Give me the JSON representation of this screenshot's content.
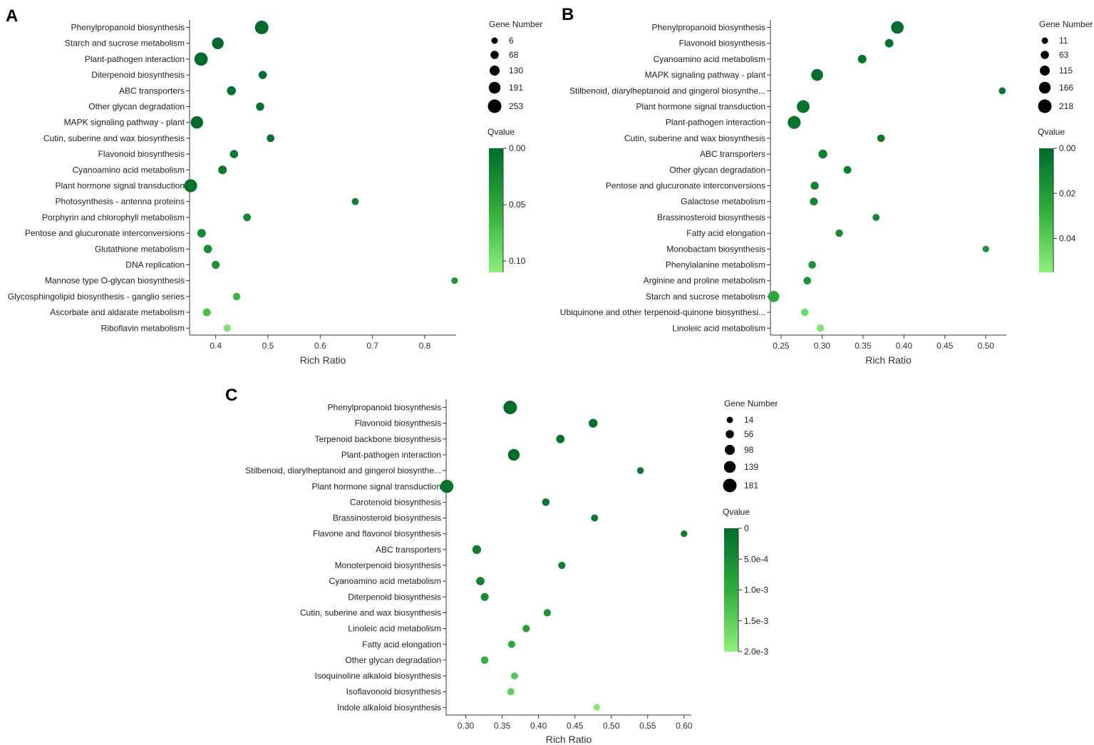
{
  "panels": [
    {
      "letter": "A",
      "size_legend_title": "Gene Number",
      "color_legend_title": "Qvalue",
      "xlabel": "Rich Ratio",
      "chart_data": {
        "type": "scatter",
        "xlabel": "Rich Ratio",
        "x_range": [
          0.35,
          0.86
        ],
        "x_ticks": [
          0.4,
          0.5,
          0.6,
          0.7,
          0.8
        ],
        "x_tick_labels": [
          "0.4",
          "0.5",
          "0.6",
          "0.7",
          "0.8"
        ],
        "size_legend": {
          "title": "Gene Number",
          "values": [
            6,
            68,
            130,
            191,
            253
          ],
          "labels": [
            "6",
            "68",
            "130",
            "191",
            "253"
          ]
        },
        "color_legend": {
          "title": "Qvalue",
          "min": 0,
          "max": 0.11,
          "ticks": [
            0,
            0.05,
            0.1
          ],
          "tick_labels": [
            "0.00",
            "0.05",
            "0.10"
          ],
          "colors": [
            "#006b2d",
            "#8ef07a"
          ]
        },
        "points": [
          {
            "pathway": "Phenylpropanoid biosynthesis",
            "rich_ratio": 0.488,
            "gene_number": 253,
            "qvalue": 0.0
          },
          {
            "pathway": "Starch and sucrose metabolism",
            "rich_ratio": 0.404,
            "gene_number": 191,
            "qvalue": 0.0
          },
          {
            "pathway": "Plant-pathogen interaction",
            "rich_ratio": 0.372,
            "gene_number": 245,
            "qvalue": 0.0
          },
          {
            "pathway": "Diterpenoid biosynthesis",
            "rich_ratio": 0.49,
            "gene_number": 68,
            "qvalue": 0.002
          },
          {
            "pathway": "ABC transporters",
            "rich_ratio": 0.43,
            "gene_number": 95,
            "qvalue": 0.003
          },
          {
            "pathway": "Other glycan degradation",
            "rich_ratio": 0.485,
            "gene_number": 68,
            "qvalue": 0.004
          },
          {
            "pathway": "MAPK signaling pathway - plant",
            "rich_ratio": 0.364,
            "gene_number": 215,
            "qvalue": 0.0
          },
          {
            "pathway": "Cutin, suberine and wax biosynthesis",
            "rich_ratio": 0.505,
            "gene_number": 50,
            "qvalue": 0.006
          },
          {
            "pathway": "Flavonoid biosynthesis",
            "rich_ratio": 0.435,
            "gene_number": 68,
            "qvalue": 0.008
          },
          {
            "pathway": "Cyanoamino acid metabolism",
            "rich_ratio": 0.413,
            "gene_number": 80,
            "qvalue": 0.01
          },
          {
            "pathway": "Plant hormone signal transduction",
            "rich_ratio": 0.352,
            "gene_number": 235,
            "qvalue": 0.005
          },
          {
            "pathway": "Photosynthesis - antenna proteins",
            "rich_ratio": 0.667,
            "gene_number": 28,
            "qvalue": 0.018
          },
          {
            "pathway": "Porphyrin and chlorophyll metabolism",
            "rich_ratio": 0.46,
            "gene_number": 50,
            "qvalue": 0.02
          },
          {
            "pathway": "Pentose and glucuronate interconversions",
            "rich_ratio": 0.373,
            "gene_number": 80,
            "qvalue": 0.025
          },
          {
            "pathway": "Glutathione metabolism",
            "rich_ratio": 0.385,
            "gene_number": 75,
            "qvalue": 0.028
          },
          {
            "pathway": "DNA replication",
            "rich_ratio": 0.4,
            "gene_number": 60,
            "qvalue": 0.03
          },
          {
            "pathway": "Mannose type O-glycan biosynthesis",
            "rich_ratio": 0.857,
            "gene_number": 12,
            "qvalue": 0.035
          },
          {
            "pathway": "Glycosphingolipid biosynthesis - ganglio series",
            "rich_ratio": 0.44,
            "gene_number": 40,
            "qvalue": 0.06
          },
          {
            "pathway": "Ascorbate and aldarate metabolism",
            "rich_ratio": 0.383,
            "gene_number": 60,
            "qvalue": 0.07
          },
          {
            "pathway": "Riboflavin metabolism",
            "rich_ratio": 0.422,
            "gene_number": 40,
            "qvalue": 0.1
          }
        ]
      }
    },
    {
      "letter": "B",
      "size_legend_title": "Gene Number",
      "color_legend_title": "Qvalue",
      "xlabel": "Rich Ratio",
      "chart_data": {
        "type": "scatter",
        "xlabel": "Rich Ratio",
        "x_range": [
          0.237,
          0.525
        ],
        "x_ticks": [
          0.25,
          0.3,
          0.35,
          0.4,
          0.45,
          0.5
        ],
        "x_tick_labels": [
          "0.25",
          "0.30",
          "0.35",
          "0.40",
          "0.45",
          "0.50"
        ],
        "size_legend": {
          "title": "Gene Number",
          "values": [
            11,
            63,
            115,
            166,
            218
          ],
          "labels": [
            "11",
            "63",
            "115",
            "166",
            "218"
          ]
        },
        "color_legend": {
          "title": "Qvalue",
          "min": 0,
          "max": 0.055,
          "ticks": [
            0,
            0.02,
            0.04
          ],
          "tick_labels": [
            "0.00",
            "0.02",
            "0.04"
          ],
          "colors": [
            "#006b2d",
            "#8ef07a"
          ]
        },
        "points": [
          {
            "pathway": "Phenylpropanoid biosynthesis",
            "rich_ratio": 0.392,
            "gene_number": 190,
            "qvalue": 0.001
          },
          {
            "pathway": "Flavonoid biosynthesis",
            "rich_ratio": 0.382,
            "gene_number": 70,
            "qvalue": 0.002
          },
          {
            "pathway": "Cyanoamino acid metabolism",
            "rich_ratio": 0.349,
            "gene_number": 75,
            "qvalue": 0.003
          },
          {
            "pathway": "MAPK signaling pathway - plant",
            "rich_ratio": 0.294,
            "gene_number": 170,
            "qvalue": 0.002
          },
          {
            "pathway": "Stilbenoid, diarylheptanoid and gingerol biosynthe...",
            "rich_ratio": 0.52,
            "gene_number": 25,
            "qvalue": 0.004
          },
          {
            "pathway": "Plant hormone signal transduction",
            "rich_ratio": 0.277,
            "gene_number": 195,
            "qvalue": 0.003
          },
          {
            "pathway": "Plant-pathogen interaction",
            "rich_ratio": 0.266,
            "gene_number": 200,
            "qvalue": 0.004
          },
          {
            "pathway": "Cutin, suberine and wax biosynthesis",
            "rich_ratio": 0.372,
            "gene_number": 45,
            "qvalue": 0.006
          },
          {
            "pathway": "ABC transporters",
            "rich_ratio": 0.301,
            "gene_number": 80,
            "qvalue": 0.007
          },
          {
            "pathway": "Other glycan degradation",
            "rich_ratio": 0.331,
            "gene_number": 50,
            "qvalue": 0.008
          },
          {
            "pathway": "Pentose and glucuronate interconversions",
            "rich_ratio": 0.291,
            "gene_number": 60,
            "qvalue": 0.01
          },
          {
            "pathway": "Galactose metabolism",
            "rich_ratio": 0.29,
            "gene_number": 55,
            "qvalue": 0.011
          },
          {
            "pathway": "Brassinosteroid biosynthesis",
            "rich_ratio": 0.366,
            "gene_number": 30,
            "qvalue": 0.012
          },
          {
            "pathway": "Fatty acid elongation",
            "rich_ratio": 0.321,
            "gene_number": 40,
            "qvalue": 0.013
          },
          {
            "pathway": "Monobactam biosynthesis",
            "rich_ratio": 0.5,
            "gene_number": 15,
            "qvalue": 0.015
          },
          {
            "pathway": "Phenylalanine metabolism",
            "rich_ratio": 0.288,
            "gene_number": 45,
            "qvalue": 0.016
          },
          {
            "pathway": "Arginine and proline metabolism",
            "rich_ratio": 0.282,
            "gene_number": 45,
            "qvalue": 0.017
          },
          {
            "pathway": "Starch and sucrose metabolism",
            "rich_ratio": 0.241,
            "gene_number": 150,
            "qvalue": 0.025
          },
          {
            "pathway": "Ubiquinone and other terpenoid-quinone biosynthesi...",
            "rich_ratio": 0.279,
            "gene_number": 40,
            "qvalue": 0.045
          },
          {
            "pathway": "Linoleic acid metabolism",
            "rich_ratio": 0.298,
            "gene_number": 40,
            "qvalue": 0.05
          }
        ]
      }
    },
    {
      "letter": "C",
      "size_legend_title": "Gene Number",
      "color_legend_title": "Qvalue",
      "xlabel": "Rich Ratio",
      "chart_data": {
        "type": "scatter",
        "xlabel": "Rich Ratio",
        "x_range": [
          0.273,
          0.61
        ],
        "x_ticks": [
          0.3,
          0.35,
          0.4,
          0.45,
          0.5,
          0.55,
          0.6
        ],
        "x_tick_labels": [
          "0.30",
          "0.35",
          "0.40",
          "0.45",
          "0.50",
          "0.55",
          "0.60"
        ],
        "size_legend": {
          "title": "Gene Number",
          "values": [
            14,
            56,
            98,
            139,
            181
          ],
          "labels": [
            "14",
            "56",
            "98",
            "139",
            "181"
          ]
        },
        "color_legend": {
          "title": "Qvalue",
          "min": 0,
          "max": 0.002,
          "ticks": [
            0,
            0.0005,
            0.001,
            0.0015,
            0.002
          ],
          "tick_labels": [
            "0",
            "5.0e-4",
            "1.0e-3",
            "1.5e-3",
            "2.0e-3"
          ],
          "colors": [
            "#006b2d",
            "#8ef07a"
          ]
        },
        "points": [
          {
            "pathway": "Phenylpropanoid biosynthesis",
            "rich_ratio": 0.361,
            "gene_number": 181,
            "qvalue": 0.0
          },
          {
            "pathway": "Flavonoid biosynthesis",
            "rich_ratio": 0.475,
            "gene_number": 70,
            "qvalue": 5e-05
          },
          {
            "pathway": "Terpenoid backbone biosynthesis",
            "rich_ratio": 0.43,
            "gene_number": 60,
            "qvalue": 0.0001
          },
          {
            "pathway": "Plant-pathogen interaction",
            "rich_ratio": 0.366,
            "gene_number": 139,
            "qvalue": 5e-05
          },
          {
            "pathway": "Stilbenoid, diarylheptanoid and gingerol biosynthe...",
            "rich_ratio": 0.54,
            "gene_number": 25,
            "qvalue": 0.0002
          },
          {
            "pathway": "Plant hormone signal transduction",
            "rich_ratio": 0.274,
            "gene_number": 170,
            "qvalue": 0.0001
          },
          {
            "pathway": "Carotenoid biosynthesis",
            "rich_ratio": 0.41,
            "gene_number": 40,
            "qvalue": 0.0002
          },
          {
            "pathway": "Brassinosteroid biosynthesis",
            "rich_ratio": 0.477,
            "gene_number": 30,
            "qvalue": 0.0002
          },
          {
            "pathway": "Flavone and flavonol biosynthesis",
            "rich_ratio": 0.6,
            "gene_number": 20,
            "qvalue": 0.0003
          },
          {
            "pathway": "ABC transporters",
            "rich_ratio": 0.315,
            "gene_number": 70,
            "qvalue": 0.0003
          },
          {
            "pathway": "Monoterpenoid biosynthesis",
            "rich_ratio": 0.432,
            "gene_number": 35,
            "qvalue": 0.0003
          },
          {
            "pathway": "Cyanoamino acid metabolism",
            "rich_ratio": 0.32,
            "gene_number": 60,
            "qvalue": 0.0004
          },
          {
            "pathway": "Diterpenoid biosynthesis",
            "rich_ratio": 0.326,
            "gene_number": 50,
            "qvalue": 0.0005
          },
          {
            "pathway": "Cutin, suberine and wax biosynthesis",
            "rich_ratio": 0.412,
            "gene_number": 35,
            "qvalue": 0.0006
          },
          {
            "pathway": "Linoleic acid metabolism",
            "rich_ratio": 0.383,
            "gene_number": 35,
            "qvalue": 0.0008
          },
          {
            "pathway": "Fatty acid elongation",
            "rich_ratio": 0.363,
            "gene_number": 35,
            "qvalue": 0.0009
          },
          {
            "pathway": "Other glycan degradation",
            "rich_ratio": 0.326,
            "gene_number": 40,
            "qvalue": 0.001
          },
          {
            "pathway": "Isoquinoline alkaloid biosynthesis",
            "rich_ratio": 0.367,
            "gene_number": 30,
            "qvalue": 0.0014
          },
          {
            "pathway": "Isoflavonoid biosynthesis",
            "rich_ratio": 0.362,
            "gene_number": 30,
            "qvalue": 0.0015
          },
          {
            "pathway": "Indole alkaloid biosynthesis",
            "rich_ratio": 0.48,
            "gene_number": 20,
            "qvalue": 0.0019
          }
        ]
      }
    }
  ]
}
